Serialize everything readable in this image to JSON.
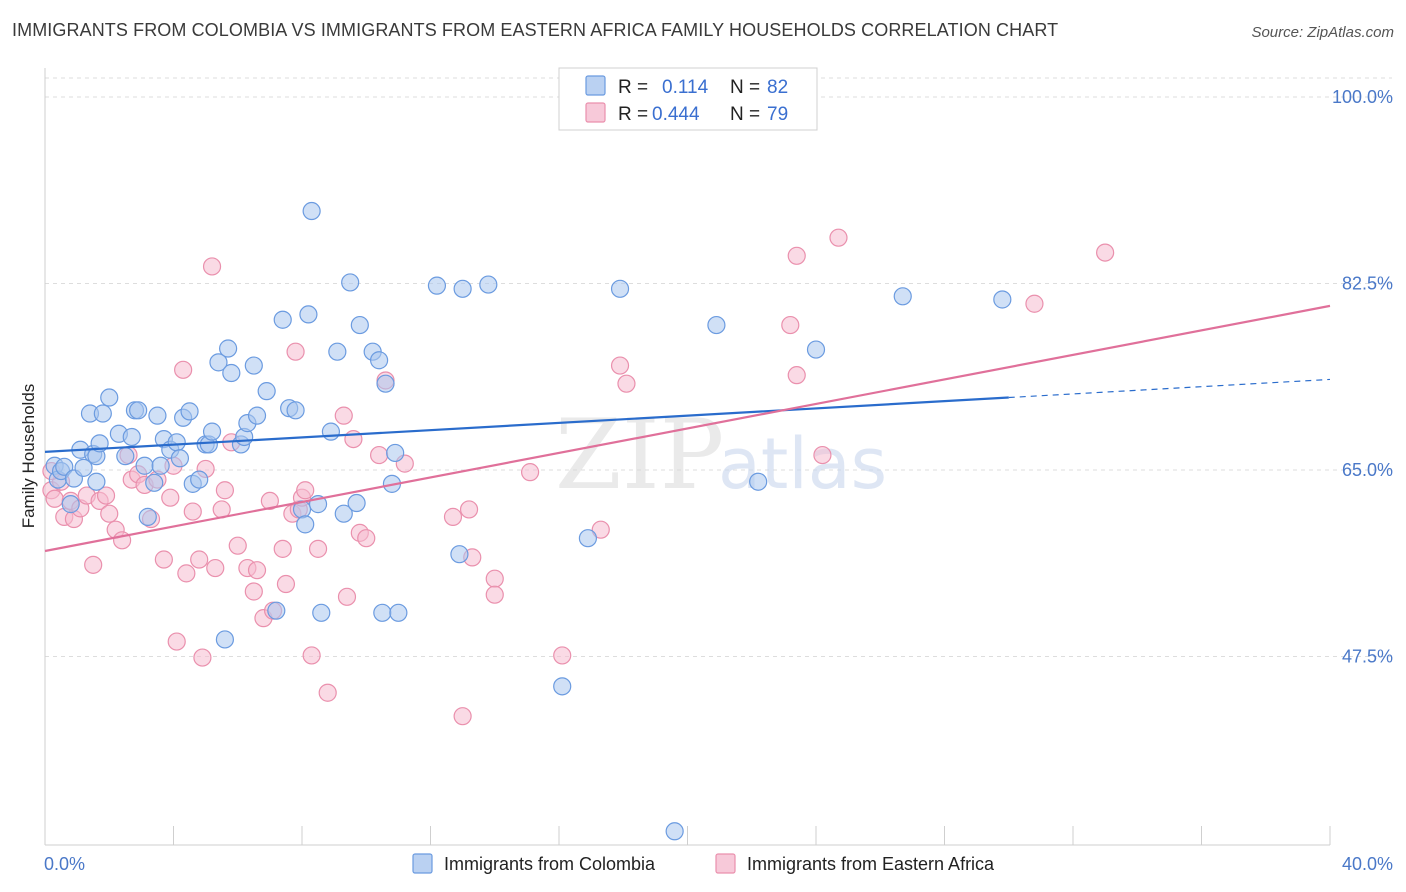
{
  "title": "IMMIGRANTS FROM COLOMBIA VS IMMIGRANTS FROM EASTERN AFRICA FAMILY HOUSEHOLDS CORRELATION CHART",
  "source": "Source: ZipAtlas.com",
  "watermark": {
    "zip": "ZIP",
    "atlas": "atlas"
  },
  "colors": {
    "colombia_fill": "#a9c6ef",
    "colombia_stroke": "#6b9be0",
    "colombia_line": "#2a6ccc",
    "eastafrica_fill": "#f5bccf",
    "eastafrica_stroke": "#ea90ad",
    "eastafrica_line": "#e0709a",
    "tick": "#4a78c8"
  },
  "legend": {
    "rows": [
      {
        "r_label": "R =",
        "r_value": "0.114",
        "n_label": "N =",
        "n_value": "82"
      },
      {
        "r_label": "R =",
        "r_value": "0.444",
        "n_label": "N =",
        "n_value": "79"
      }
    ]
  },
  "bottom_legend": [
    "Immigrants from Colombia",
    "Immigrants from Eastern Africa"
  ],
  "chart_data": {
    "type": "scatter",
    "xlabel": "",
    "ylabel": "Family Households",
    "xlim": [
      0,
      40
    ],
    "ylim": [
      30,
      100
    ],
    "x_tick_labels": [
      "0.0%",
      "40.0%"
    ],
    "y_ticks": [
      47.5,
      65.0,
      82.5,
      100.0
    ],
    "y_tick_labels": [
      "47.5%",
      "65.0%",
      "82.5%",
      "100.0%"
    ],
    "grid": "horizontal dashed",
    "legend_position": "top-center",
    "series": [
      {
        "name": "Immigrants from Colombia",
        "trend": {
          "x": [
            0,
            30
          ],
          "y": [
            66.7,
            71.8
          ],
          "dashed_to": [
            40,
            73.5
          ]
        },
        "points": [
          [
            0.3,
            65.4
          ],
          [
            0.4,
            64.1
          ],
          [
            0.5,
            64.9
          ],
          [
            0.6,
            65.3
          ],
          [
            0.8,
            61.8
          ],
          [
            0.9,
            64.2
          ],
          [
            1.1,
            66.9
          ],
          [
            1.4,
            70.3
          ],
          [
            1.5,
            66.5
          ],
          [
            1.6,
            66.3
          ],
          [
            1.7,
            67.5
          ],
          [
            1.8,
            70.3
          ],
          [
            2.0,
            71.8
          ],
          [
            2.3,
            68.4
          ],
          [
            2.5,
            66.3
          ],
          [
            2.7,
            68.1
          ],
          [
            2.8,
            70.6
          ],
          [
            2.9,
            70.6
          ],
          [
            3.1,
            65.4
          ],
          [
            3.2,
            60.6
          ],
          [
            3.4,
            63.8
          ],
          [
            3.5,
            70.1
          ],
          [
            3.7,
            67.9
          ],
          [
            3.9,
            66.9
          ],
          [
            4.1,
            67.6
          ],
          [
            4.2,
            66.1
          ],
          [
            4.3,
            69.9
          ],
          [
            4.5,
            70.5
          ],
          [
            4.6,
            63.7
          ],
          [
            4.8,
            64.1
          ],
          [
            5.0,
            67.4
          ],
          [
            5.1,
            67.4
          ],
          [
            5.2,
            68.6
          ],
          [
            5.4,
            75.1
          ],
          [
            5.6,
            49.1
          ],
          [
            5.7,
            76.4
          ],
          [
            5.8,
            74.1
          ],
          [
            6.1,
            67.4
          ],
          [
            6.2,
            68.1
          ],
          [
            6.3,
            69.4
          ],
          [
            6.5,
            74.8
          ],
          [
            6.6,
            70.1
          ],
          [
            6.9,
            72.4
          ],
          [
            7.2,
            51.8
          ],
          [
            7.4,
            79.1
          ],
          [
            7.6,
            70.8
          ],
          [
            7.8,
            70.6
          ],
          [
            8.0,
            61.3
          ],
          [
            8.1,
            59.9
          ],
          [
            8.2,
            79.6
          ],
          [
            8.3,
            89.3
          ],
          [
            8.5,
            61.8
          ],
          [
            8.6,
            51.6
          ],
          [
            8.9,
            68.6
          ],
          [
            9.1,
            76.1
          ],
          [
            9.3,
            60.9
          ],
          [
            9.5,
            82.6
          ],
          [
            9.7,
            61.9
          ],
          [
            9.8,
            78.6
          ],
          [
            10.2,
            76.1
          ],
          [
            10.4,
            75.3
          ],
          [
            10.5,
            51.6
          ],
          [
            10.6,
            73.1
          ],
          [
            10.8,
            63.7
          ],
          [
            10.9,
            66.6
          ],
          [
            11.0,
            51.6
          ],
          [
            12.2,
            82.3
          ],
          [
            12.9,
            57.1
          ],
          [
            13.0,
            82.0
          ],
          [
            13.8,
            82.4
          ],
          [
            16.1,
            44.7
          ],
          [
            16.9,
            58.6
          ],
          [
            17.9,
            82.0
          ],
          [
            19.6,
            31.1
          ],
          [
            20.9,
            78.6
          ],
          [
            22.2,
            63.9
          ],
          [
            24.0,
            76.3
          ],
          [
            26.7,
            81.3
          ],
          [
            29.8,
            81.0
          ],
          [
            1.6,
            63.9
          ],
          [
            3.6,
            65.4
          ],
          [
            1.2,
            65.2
          ]
        ]
      },
      {
        "name": "Immigrants from Eastern Africa",
        "trend": {
          "x": [
            0,
            40
          ],
          "y": [
            57.4,
            80.4
          ]
        },
        "points": [
          [
            0.2,
            63.1
          ],
          [
            0.3,
            62.3
          ],
          [
            0.5,
            63.9
          ],
          [
            0.6,
            60.6
          ],
          [
            0.8,
            62.1
          ],
          [
            0.9,
            60.4
          ],
          [
            1.1,
            61.4
          ],
          [
            1.3,
            62.6
          ],
          [
            1.5,
            56.1
          ],
          [
            1.7,
            62.1
          ],
          [
            1.9,
            62.6
          ],
          [
            2.0,
            60.9
          ],
          [
            2.2,
            59.4
          ],
          [
            2.4,
            58.4
          ],
          [
            2.6,
            66.4
          ],
          [
            2.7,
            64.1
          ],
          [
            2.9,
            64.6
          ],
          [
            3.1,
            63.6
          ],
          [
            3.3,
            60.4
          ],
          [
            3.5,
            64.1
          ],
          [
            3.7,
            56.6
          ],
          [
            3.9,
            62.4
          ],
          [
            4.0,
            65.4
          ],
          [
            4.1,
            48.9
          ],
          [
            4.3,
            74.4
          ],
          [
            4.4,
            55.3
          ],
          [
            4.6,
            61.1
          ],
          [
            4.8,
            56.6
          ],
          [
            4.9,
            47.4
          ],
          [
            5.0,
            65.1
          ],
          [
            5.2,
            84.1
          ],
          [
            5.3,
            55.8
          ],
          [
            5.5,
            61.3
          ],
          [
            5.6,
            63.1
          ],
          [
            5.8,
            67.6
          ],
          [
            6.0,
            57.9
          ],
          [
            6.3,
            55.8
          ],
          [
            6.5,
            53.6
          ],
          [
            6.6,
            55.6
          ],
          [
            6.8,
            51.1
          ],
          [
            7.0,
            62.1
          ],
          [
            7.1,
            51.8
          ],
          [
            7.4,
            57.6
          ],
          [
            7.5,
            54.3
          ],
          [
            7.7,
            60.9
          ],
          [
            7.8,
            76.1
          ],
          [
            7.9,
            61.3
          ],
          [
            8.0,
            62.4
          ],
          [
            8.1,
            63.1
          ],
          [
            8.3,
            47.6
          ],
          [
            8.5,
            57.6
          ],
          [
            8.8,
            44.1
          ],
          [
            9.3,
            70.1
          ],
          [
            9.4,
            53.1
          ],
          [
            9.6,
            67.9
          ],
          [
            9.8,
            59.1
          ],
          [
            10.0,
            58.6
          ],
          [
            10.4,
            66.4
          ],
          [
            10.6,
            73.4
          ],
          [
            11.2,
            65.6
          ],
          [
            12.7,
            60.6
          ],
          [
            13.0,
            41.9
          ],
          [
            13.2,
            61.3
          ],
          [
            13.3,
            56.8
          ],
          [
            14.0,
            54.8
          ],
          [
            14.0,
            53.3
          ],
          [
            15.1,
            64.8
          ],
          [
            16.1,
            47.6
          ],
          [
            17.3,
            59.4
          ],
          [
            17.9,
            74.8
          ],
          [
            18.1,
            73.1
          ],
          [
            23.2,
            78.6
          ],
          [
            23.4,
            73.9
          ],
          [
            23.4,
            85.1
          ],
          [
            24.2,
            66.4
          ],
          [
            24.7,
            86.8
          ],
          [
            30.8,
            80.6
          ],
          [
            33.0,
            85.4
          ],
          [
            0.2,
            64.9
          ]
        ]
      }
    ]
  }
}
